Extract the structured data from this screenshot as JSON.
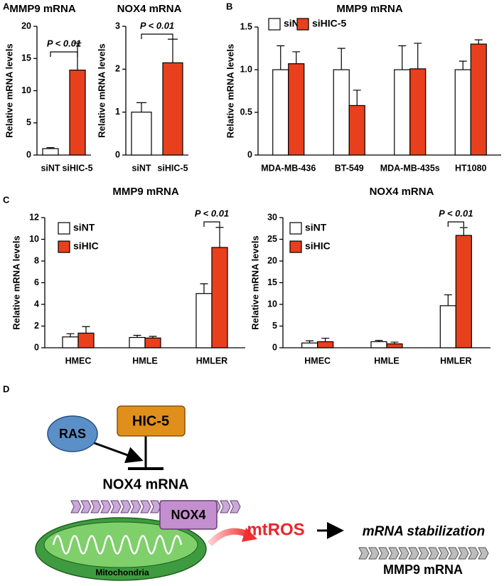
{
  "panels": [
    "A",
    "B",
    "C",
    "D"
  ],
  "chart_data": [
    {
      "type": "bar",
      "title": "MMP9 mRNA",
      "y_label": "Relative mRNA levels",
      "categories": [
        "siNT",
        "siHIC-5"
      ],
      "values": [
        1.0,
        13.2
      ],
      "errors": [
        0.15,
        4.2
      ],
      "colors": [
        "#ffffff",
        "#e8401c"
      ],
      "ylim": [
        0,
        20
      ],
      "yticks": [
        0,
        5,
        10,
        15,
        20
      ],
      "annotation": "P < 0.01"
    },
    {
      "type": "bar",
      "title": "NOX4 mRNA",
      "y_label": "Relative mRNA levels",
      "categories": [
        "siNT",
        "siHIC-5"
      ],
      "values": [
        1.0,
        2.15
      ],
      "errors": [
        0.22,
        0.55
      ],
      "colors": [
        "#ffffff",
        "#e8401c"
      ],
      "ylim": [
        0,
        3
      ],
      "yticks": [
        0,
        1,
        2,
        3
      ],
      "annotation": "P < 0.01"
    },
    {
      "type": "grouped-bar",
      "title": "MMP9 mRNA",
      "y_label": "Relative mRNA levels",
      "categories": [
        "MDA-MB-436",
        "BT-549",
        "MDA-MB-435s",
        "HT1080"
      ],
      "series": [
        {
          "name": "siNT",
          "color": "#ffffff",
          "values": [
            1.0,
            1.0,
            1.0,
            1.0
          ],
          "errors": [
            0.28,
            0.25,
            0.28,
            0.1
          ]
        },
        {
          "name": "siHIC-5",
          "color": "#e8401c",
          "values": [
            1.07,
            0.58,
            1.01,
            1.3
          ],
          "errors": [
            0.14,
            0.18,
            0.3,
            0.05
          ]
        }
      ],
      "ylim": [
        0,
        1.5
      ],
      "yticks": [
        0,
        0.5,
        {
          "value": 1,
          "label": "1.0"
        },
        1.5
      ],
      "legend": "top-left"
    },
    {
      "type": "grouped-bar",
      "title": "MMP9 mRNA",
      "y_label": "Relative mRNA levels",
      "categories": [
        "HMEC",
        "HMLE",
        "HMLER"
      ],
      "series": [
        {
          "name": "siNT",
          "color": "#ffffff",
          "values": [
            1.0,
            0.95,
            5.0
          ],
          "errors": [
            0.3,
            0.2,
            0.9
          ]
        },
        {
          "name": "siHIC",
          "color": "#e8401c",
          "values": [
            1.35,
            0.9,
            9.25
          ],
          "errors": [
            0.6,
            0.15,
            1.85
          ]
        }
      ],
      "ylim": [
        0,
        12
      ],
      "yticks": [
        0,
        2,
        4,
        6,
        8,
        10,
        12
      ],
      "legend": "top-left",
      "annotation": "P < 0.01"
    },
    {
      "type": "grouped-bar",
      "title": "NOX4 mRNA",
      "y_label": "Relative mRNA levels",
      "categories": [
        "HMEC",
        "HMLE",
        "HMLER"
      ],
      "series": [
        {
          "name": "siNT",
          "color": "#ffffff",
          "values": [
            1.1,
            1.4,
            9.7
          ],
          "errors": [
            0.5,
            0.3,
            2.5
          ]
        },
        {
          "name": "siHIC",
          "color": "#e8401c",
          "values": [
            1.4,
            0.9,
            25.9
          ],
          "errors": [
            0.8,
            0.4,
            1.8
          ]
        }
      ],
      "ylim": [
        0,
        30
      ],
      "yticks": [
        0,
        5,
        10,
        15,
        20,
        25,
        30
      ],
      "legend": "top-left",
      "annotation": "P < 0.01"
    }
  ],
  "diagram": {
    "ras": "RAS",
    "hic5": "HIC-5",
    "nox4_mrna": "NOX4 mRNA",
    "nox4": "NOX4",
    "mtros": "mtROS",
    "stabilization": "mRNA stabilization",
    "mmp9_mrna": "MMP9 mRNA",
    "mitochondria": "Mitochondria"
  }
}
